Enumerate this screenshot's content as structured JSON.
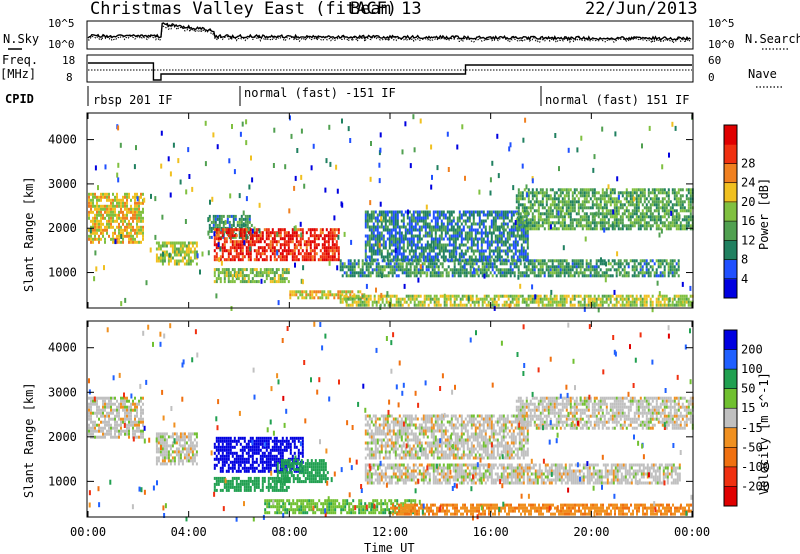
{
  "header": {
    "title": "Christmas Valley East (fitACF)",
    "beam": "Beam 13",
    "date": "22/Jun/2013"
  },
  "params_panel": {
    "nsky_label": "N.Sky",
    "nsky_ticks": [
      "10^5",
      "10^0"
    ],
    "nsearch_label": "N.Search",
    "nsearch_ticks": [
      "10^5",
      "10^0"
    ],
    "freq_label_line1": "Freq.",
    "freq_label_line2": "[MHz]",
    "freq_ticks": [
      "18",
      "8"
    ],
    "nave_label": "Nave",
    "nave_ticks": [
      "60",
      "0"
    ],
    "cpid_label": "CPID",
    "cpid_segments": [
      {
        "label": "rbsp 201 IF",
        "start_h": 0.0
      },
      {
        "label": "normal (fast) -151 IF",
        "start_h": 6.0
      },
      {
        "label": "normal (fast) 151 IF",
        "start_h": 18.0
      }
    ]
  },
  "x_axis": {
    "label": "Time UT",
    "ticks": [
      "00:00",
      "04:00",
      "08:00",
      "12:00",
      "16:00",
      "20:00",
      "00:00"
    ]
  },
  "chart_data": [
    {
      "type": "heatmap",
      "title": "",
      "ylabel": "Slant Range [km]",
      "xlabel": "Time UT",
      "xlim_hours": [
        0,
        24
      ],
      "ylim": [
        200,
        4600
      ],
      "yticks": [
        "1000",
        "2000",
        "3000",
        "4000"
      ],
      "colorbar": {
        "label": "Power [dB]",
        "ticks": [
          "4",
          "8",
          "12",
          "16",
          "20",
          "24",
          "28"
        ],
        "colors": [
          "#0000e0",
          "#2050ff",
          "#208060",
          "#50a050",
          "#80c040",
          "#f0c020",
          "#f08020",
          "#f03010",
          "#e00000"
        ]
      },
      "regions": [
        {
          "t": [
            0.0,
            2.2
          ],
          "r": [
            1700,
            2800
          ],
          "level": 18
        },
        {
          "t": [
            2.7,
            4.3
          ],
          "r": [
            1200,
            1700
          ],
          "level": 16
        },
        {
          "t": [
            4.8,
            6.5
          ],
          "r": [
            1800,
            2300
          ],
          "level": 10
        },
        {
          "t": [
            5.0,
            8.0
          ],
          "r": [
            800,
            1100
          ],
          "level": 14
        },
        {
          "t": [
            5.0,
            10.0
          ],
          "r": [
            1300,
            2000
          ],
          "level": 26
        },
        {
          "t": [
            8.0,
            11.0
          ],
          "r": [
            400,
            600
          ],
          "level": 18
        },
        {
          "t": [
            10.0,
            24.0
          ],
          "r": [
            250,
            500
          ],
          "level": 16
        },
        {
          "t": [
            10.0,
            23.5
          ],
          "r": [
            950,
            1300
          ],
          "level": 10
        },
        {
          "t": [
            11.0,
            17.5
          ],
          "r": [
            1300,
            2400
          ],
          "level": 8
        },
        {
          "t": [
            17.0,
            24.0
          ],
          "r": [
            2000,
            2900
          ],
          "level": 12
        }
      ]
    },
    {
      "type": "heatmap",
      "title": "",
      "ylabel": "Slant Range [km]",
      "xlabel": "Time UT",
      "xlim_hours": [
        0,
        24
      ],
      "ylim": [
        200,
        4600
      ],
      "yticks": [
        "1000",
        "2000",
        "3000",
        "4000"
      ],
      "colorbar": {
        "label": "Velocity [m s^-1]",
        "ticks": [
          "200",
          "100",
          "50",
          "15",
          "-15",
          "-50",
          "-100",
          "-200"
        ],
        "colors": [
          "#0000e0",
          "#2060ff",
          "#20a050",
          "#70c030",
          "#c0c0c0",
          "#f09020",
          "#f07010",
          "#f03010",
          "#e00000"
        ]
      },
      "regions": [
        {
          "t": [
            0.0,
            2.2
          ],
          "r": [
            2000,
            2900
          ],
          "velocity": 0
        },
        {
          "t": [
            2.7,
            4.3
          ],
          "r": [
            1400,
            2100
          ],
          "velocity": 0
        },
        {
          "t": [
            5.0,
            8.0
          ],
          "r": [
            800,
            1100
          ],
          "velocity": 80
        },
        {
          "t": [
            5.0,
            8.5
          ],
          "r": [
            1200,
            2000
          ],
          "velocity": 220
        },
        {
          "t": [
            7.5,
            9.5
          ],
          "r": [
            1000,
            1500
          ],
          "velocity": 70
        },
        {
          "t": [
            7.0,
            13.0
          ],
          "r": [
            300,
            600
          ],
          "velocity": 40
        },
        {
          "t": [
            12.0,
            24.0
          ],
          "r": [
            250,
            500
          ],
          "velocity": -40
        },
        {
          "t": [
            11.0,
            23.5
          ],
          "r": [
            950,
            1400
          ],
          "velocity": 0
        },
        {
          "t": [
            11.0,
            17.5
          ],
          "r": [
            1500,
            2500
          ],
          "velocity": 0
        },
        {
          "t": [
            17.0,
            24.0
          ],
          "r": [
            2200,
            2900
          ],
          "velocity": 0
        }
      ]
    }
  ]
}
